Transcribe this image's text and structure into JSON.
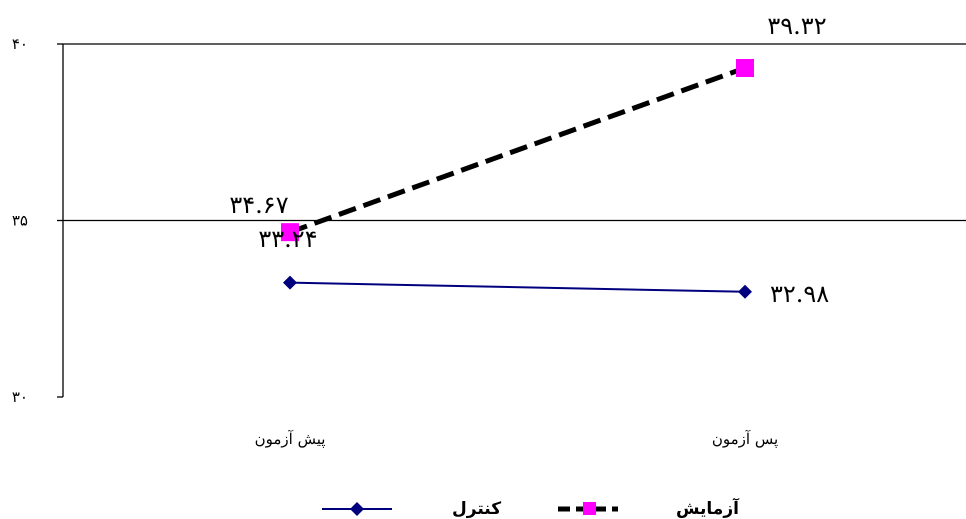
{
  "chart_data": {
    "type": "line",
    "categories": [
      "پیش آزمون",
      "پس آزمون"
    ],
    "ylim": [
      30,
      40
    ],
    "yticks": [
      30,
      35,
      40
    ],
    "ytick_labels": [
      "۳۰",
      "۳۵",
      "۴۰"
    ],
    "grid": "horizontal",
    "legend_position": "bottom",
    "series": [
      {
        "name": "کنترل",
        "values": [
          33.24,
          32.98
        ],
        "labels": [
          "۳۳.۲۴",
          "۳۲.۹۸"
        ],
        "color": "#00007F",
        "marker": "diamond",
        "line_style": "solid"
      },
      {
        "name": "آزمایش",
        "values": [
          34.67,
          39.32
        ],
        "labels": [
          "۳۴.۶۷",
          "۳۹.۳۲"
        ],
        "color": "#000000",
        "marker_color": "#FF00FF",
        "marker": "square",
        "line_style": "dashed"
      }
    ]
  }
}
